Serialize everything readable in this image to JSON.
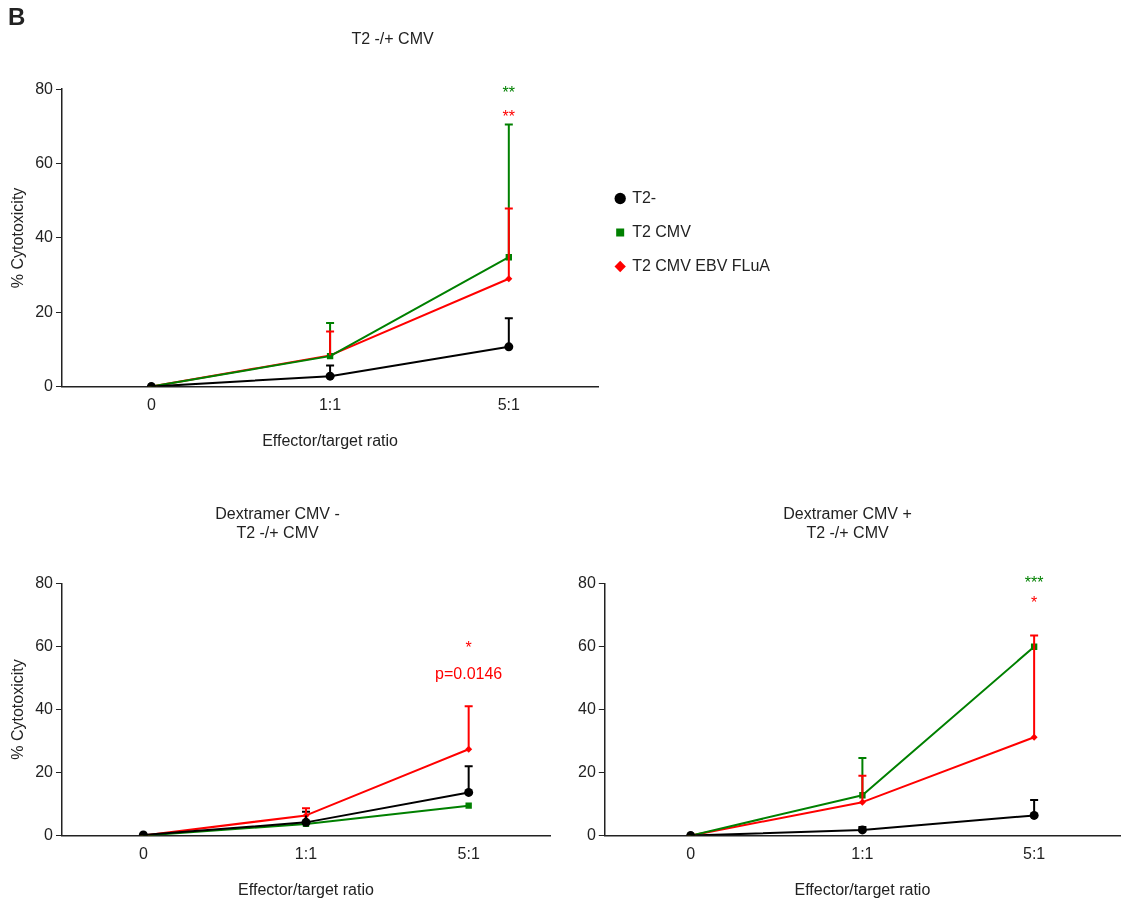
{
  "chart_data": [
    {
      "type": "line",
      "title": "T2 -/+ CMV",
      "xlabel": "Effector/target ratio",
      "ylabel": "% Cytotoxicity",
      "categories": [
        "0",
        "1:1",
        "5:1"
      ],
      "ylim": [
        0,
        80
      ],
      "yticks": [
        0,
        20,
        40,
        60,
        80
      ],
      "grid": false,
      "legend": "right",
      "series": [
        {
          "name": "T2-",
          "color": "#000000",
          "marker": "circle",
          "values": [
            0,
            2.8,
            10.7
          ],
          "errors": [
            null,
            [
              2.8,
              5.7
            ],
            [
              10.7,
              18.4
            ]
          ]
        },
        {
          "name": "T2 CMV",
          "color": "#008000",
          "marker": "square",
          "values": [
            0,
            8.2,
            34.8
          ],
          "errors": [
            null,
            [
              8.2,
              17.1
            ],
            [
              34.8,
              70.5
            ]
          ]
        },
        {
          "name": "T2 CMV EBV FLuA",
          "color": "#ff0000",
          "marker": "diamond",
          "values": [
            0,
            8.4,
            29
          ],
          "errors": [
            null,
            [
              8.4,
              14.8
            ],
            [
              29,
              47.9
            ]
          ]
        }
      ],
      "annotations": [
        "B",
        "**",
        "**"
      ]
    },
    {
      "type": "line",
      "title": "Dextramer CMV -\nT2 -/+ CMV",
      "xlabel": "Effector/target ratio",
      "ylabel": "% Cytotoxicity",
      "categories": [
        "0",
        "1:1",
        "5:1"
      ],
      "ylim": [
        0,
        80
      ],
      "yticks": [
        0,
        20,
        40,
        60,
        80
      ],
      "grid": false,
      "series": [
        {
          "color": "#000000",
          "marker": "circle",
          "values": [
            0.2,
            4.2,
            13.7
          ],
          "errors": [
            null,
            [
              4.2,
              7.6
            ],
            [
              13.7,
              22
            ]
          ]
        },
        {
          "color": "#008000",
          "marker": "square",
          "values": [
            0,
            3.7,
            9.5
          ]
        },
        {
          "color": "#ff0000",
          "marker": "diamond",
          "values": [
            0,
            6.4,
            27.4
          ],
          "errors": [
            null,
            [
              6.4,
              8.7
            ],
            [
              27.4,
              41
            ]
          ]
        }
      ],
      "annotations": [
        "*",
        "p=0.0146"
      ]
    },
    {
      "type": "line",
      "title": "Dextramer CMV +\nT2 -/+ CMV",
      "xlabel": "Effector/target ratio",
      "categories": [
        "0",
        "1:1",
        "5:1"
      ],
      "ylim": [
        0,
        80
      ],
      "yticks": [
        0,
        20,
        40,
        60,
        80
      ],
      "grid": false,
      "series": [
        {
          "color": "#000000",
          "marker": "circle",
          "values": [
            0,
            1.8,
            6.4
          ],
          "errors": [
            null,
            [
              1.8,
              2.7
            ],
            [
              6.4,
              11.3
            ]
          ]
        },
        {
          "color": "#008000",
          "marker": "square",
          "values": [
            0,
            12.8,
            59.9
          ],
          "errors": [
            null,
            [
              12.8,
              24.6
            ],
            null
          ]
        },
        {
          "color": "#ff0000",
          "marker": "diamond",
          "values": [
            0,
            10.6,
            31.2
          ],
          "errors": [
            null,
            [
              10.6,
              19
            ],
            [
              31.2,
              63.5
            ]
          ]
        }
      ],
      "annotations": [
        "***",
        "*"
      ]
    }
  ]
}
